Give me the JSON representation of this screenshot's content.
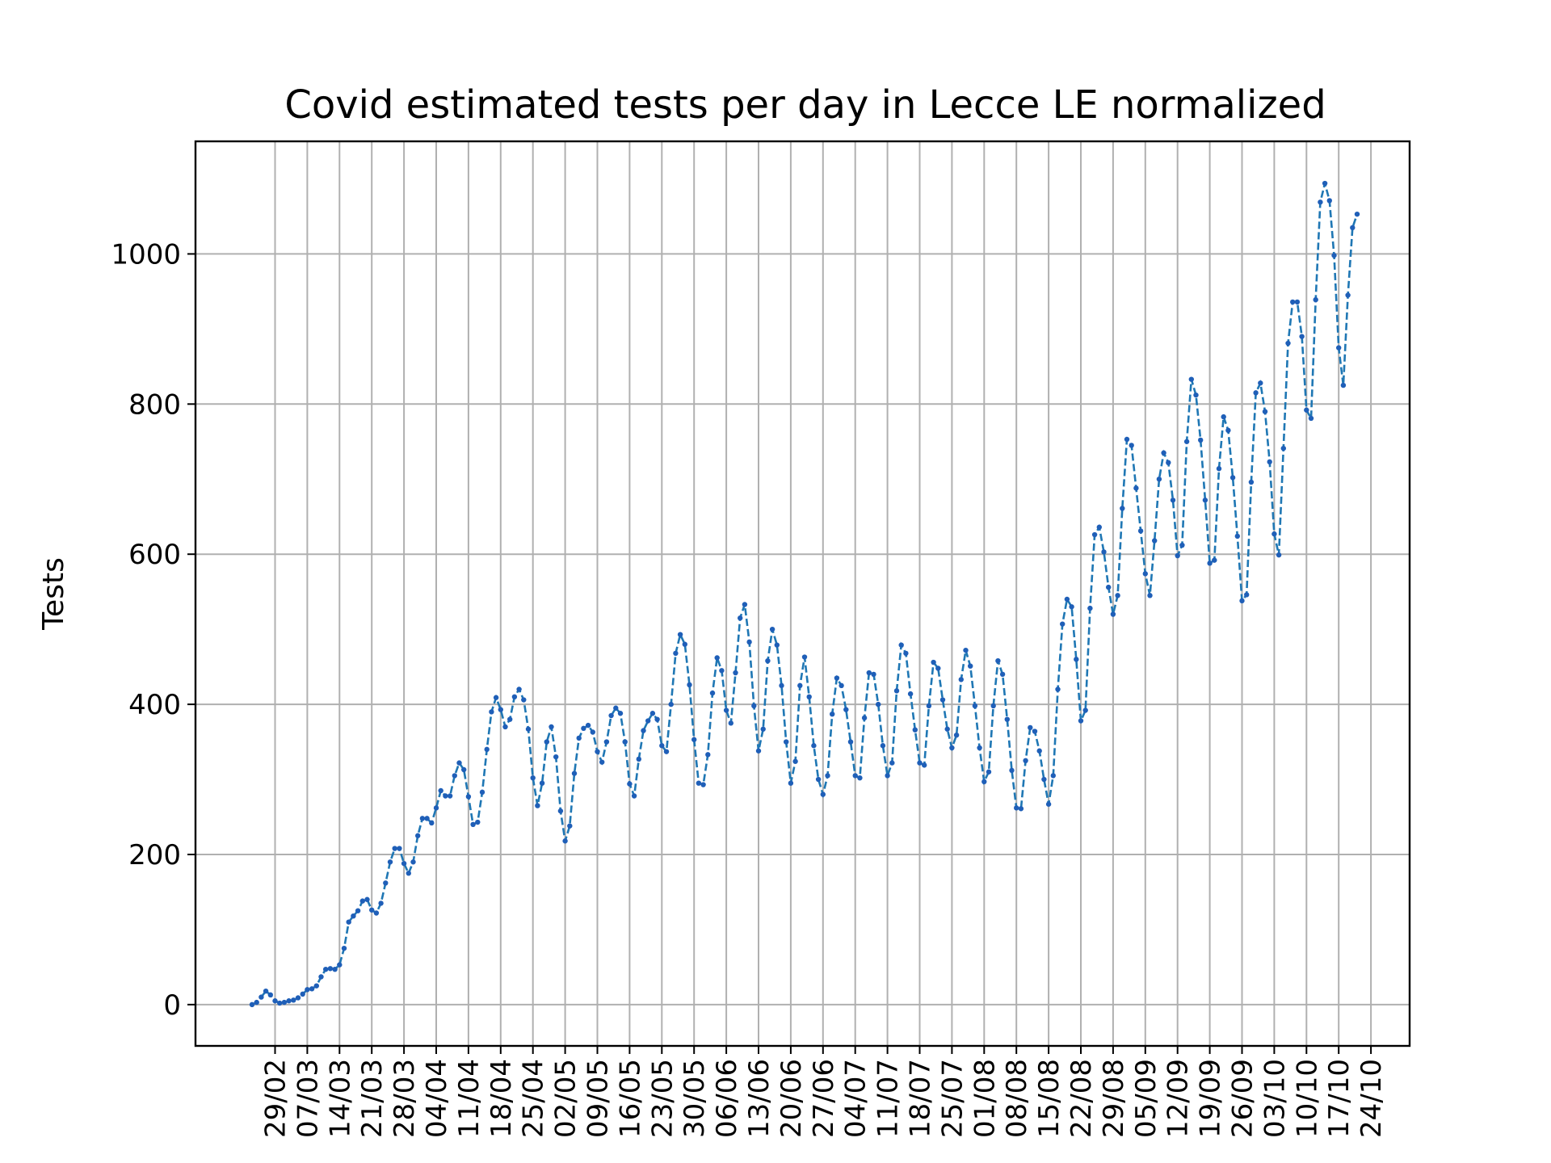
{
  "chart_data": {
    "type": "line",
    "title": "Covid estimated tests per day in Lecce LE normalized",
    "xlabel": "",
    "ylabel": "Tests",
    "x_start_date": "2020-02-24",
    "x_tick_labels": [
      "29/02",
      "07/03",
      "14/03",
      "21/03",
      "28/03",
      "04/04",
      "11/04",
      "18/04",
      "25/04",
      "02/05",
      "09/05",
      "16/05",
      "23/05",
      "30/05",
      "06/06",
      "13/06",
      "20/06",
      "27/06",
      "04/07",
      "11/07",
      "18/07",
      "25/07",
      "01/08",
      "08/08",
      "15/08",
      "22/08",
      "29/08",
      "05/09",
      "12/09",
      "19/09",
      "26/09",
      "03/10",
      "10/10",
      "17/10",
      "24/10"
    ],
    "y_ticks": [
      0,
      200,
      400,
      600,
      800,
      1000
    ],
    "ylim": [
      -55,
      1150
    ],
    "grid": true,
    "legend": "none",
    "series": [
      {
        "color": "#1f77b4",
        "line_style": "dashed",
        "marker": "dot",
        "values": [
          0,
          3,
          10,
          18,
          13,
          5,
          2,
          3,
          5,
          6,
          9,
          14,
          20,
          21,
          25,
          37,
          47,
          48,
          47,
          53,
          75,
          110,
          118,
          125,
          138,
          140,
          126,
          122,
          135,
          162,
          190,
          208,
          208,
          188,
          175,
          190,
          225,
          248,
          248,
          242,
          262,
          285,
          278,
          278,
          305,
          322,
          313,
          277,
          240,
          243,
          283,
          340,
          390,
          409,
          393,
          370,
          380,
          410,
          420,
          406,
          367,
          302,
          265,
          295,
          350,
          370,
          330,
          258,
          218,
          238,
          308,
          355,
          368,
          372,
          363,
          337,
          323,
          350,
          385,
          395,
          388,
          350,
          294,
          278,
          327,
          365,
          378,
          388,
          380,
          345,
          337,
          400,
          468,
          493,
          480,
          426,
          353,
          295,
          293,
          333,
          415,
          462,
          445,
          392,
          375,
          442,
          515,
          533,
          483,
          398,
          338,
          367,
          458,
          500,
          479,
          425,
          350,
          295,
          324,
          425,
          463,
          410,
          345,
          300,
          280,
          305,
          387,
          435,
          425,
          393,
          350,
          305,
          302,
          382,
          442,
          440,
          400,
          345,
          305,
          322,
          418,
          479,
          468,
          414,
          366,
          322,
          319,
          398,
          456,
          448,
          406,
          367,
          342,
          359,
          433,
          472,
          451,
          398,
          342,
          297,
          310,
          398,
          458,
          440,
          380,
          312,
          262,
          261,
          325,
          369,
          364,
          338,
          300,
          267,
          305,
          420,
          507,
          540,
          530,
          460,
          378,
          392,
          528,
          626,
          636,
          603,
          556,
          520,
          545,
          661,
          753,
          745,
          688,
          631,
          574,
          545,
          618,
          700,
          735,
          722,
          672,
          598,
          612,
          750,
          833,
          812,
          752,
          672,
          588,
          592,
          714,
          783,
          765,
          702,
          624,
          538,
          546,
          696,
          815,
          828,
          790,
          723,
          627,
          599,
          741,
          881,
          936,
          936,
          890,
          792,
          781,
          939,
          1069,
          1094,
          1071,
          998,
          875,
          825,
          945,
          1035,
          1053
        ]
      }
    ]
  }
}
